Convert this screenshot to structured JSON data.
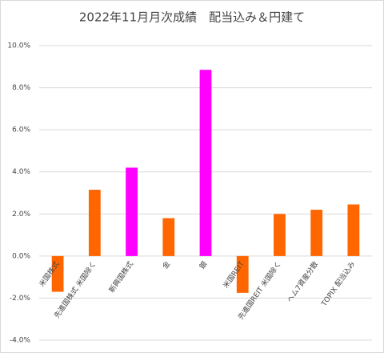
{
  "chart_data": {
    "type": "bar",
    "title": "2022年11月月次成績　配当込み＆円建て",
    "categories": [
      "米国株式",
      "先進国株式 米国除く",
      "新興国株式",
      "金",
      "銀",
      "米国REIT",
      "先進国REIT 米国除く",
      "ヘム7資産分散",
      "TOPIX 配当込み"
    ],
    "values": [
      -1.7,
      3.15,
      4.2,
      1.8,
      8.85,
      -1.75,
      2.0,
      2.2,
      2.45
    ],
    "colors": [
      "#ff6600",
      "#ff6600",
      "#ff00ff",
      "#ff6600",
      "#ff00ff",
      "#ff6600",
      "#ff6600",
      "#ff6600",
      "#ff6600"
    ],
    "ylim": [
      -4,
      10
    ],
    "yticks": [
      {
        "value": -4,
        "label": "-4.0%"
      },
      {
        "value": -2,
        "label": "-2.0%"
      },
      {
        "value": 0,
        "label": "0.0%"
      },
      {
        "value": 2,
        "label": "2.0%"
      },
      {
        "value": 4,
        "label": "4.0%"
      },
      {
        "value": 6,
        "label": "6.0%"
      },
      {
        "value": 8,
        "label": "8.0%"
      },
      {
        "value": 10,
        "label": "10.0%"
      }
    ],
    "grid": true
  }
}
